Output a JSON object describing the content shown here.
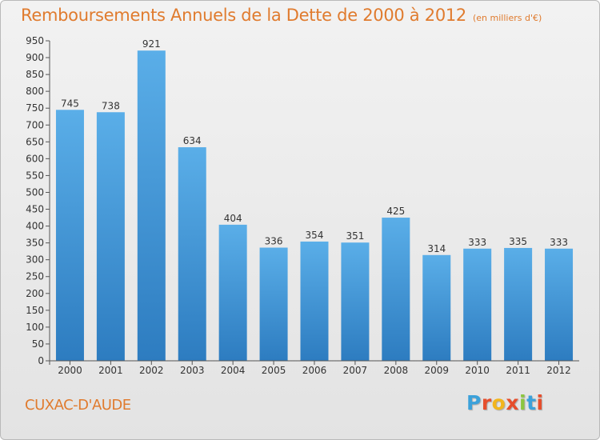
{
  "header": {
    "title": "Remboursements Annuels de la Dette de 2000 à 2012",
    "subtitle": "(en milliers d'€)"
  },
  "commune": "CUXAC-D'AUDE",
  "logo": {
    "letters": [
      "P",
      "r",
      "o",
      "x",
      "i",
      "t",
      "i"
    ],
    "colors": [
      "#3ba1da",
      "#e64e2c",
      "#f2b51d",
      "#e64e2c",
      "#8cc63f",
      "#3ba1da",
      "#e64e2c"
    ]
  },
  "colors": {
    "bar_top": "#5aaee8",
    "bar_bottom": "#2d7cc0",
    "axis": "#555555",
    "title": "#e07b2e"
  },
  "chart_data": {
    "type": "bar",
    "categories": [
      "2000",
      "2001",
      "2002",
      "2003",
      "2004",
      "2005",
      "2006",
      "2007",
      "2008",
      "2009",
      "2010",
      "2011",
      "2012"
    ],
    "values": [
      745,
      738,
      921,
      634,
      404,
      336,
      354,
      351,
      425,
      314,
      333,
      335,
      333
    ],
    "ylim": [
      0,
      950
    ],
    "ytick_step": 50,
    "grid": false
  }
}
